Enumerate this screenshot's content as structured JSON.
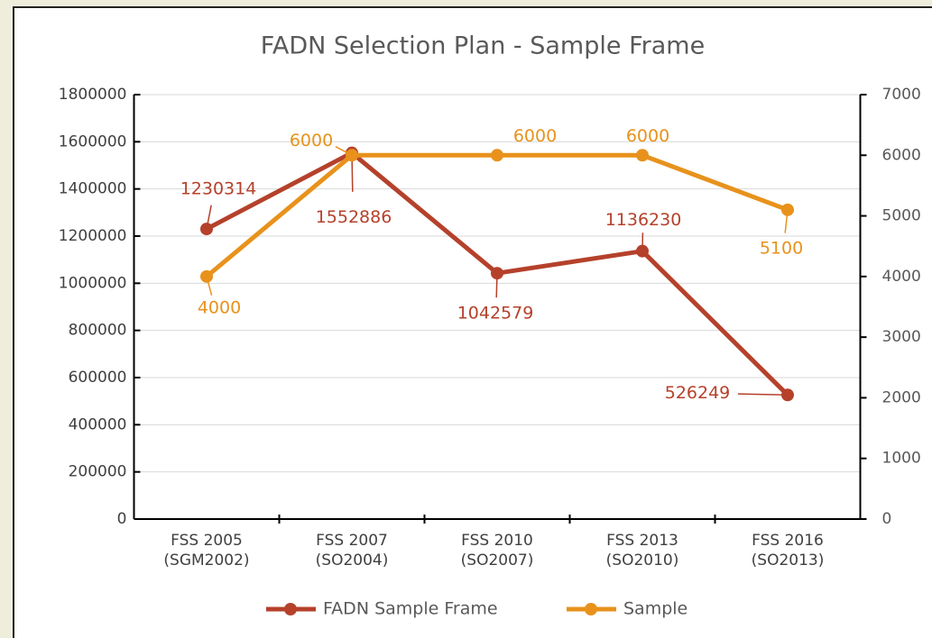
{
  "chart_data": {
    "type": "line",
    "title": "FADN Selection Plan - Sample Frame",
    "categories": [
      [
        "FSS 2005",
        "(SGM2002)"
      ],
      [
        "FSS 2007",
        "(SO2004)"
      ],
      [
        "FSS 2010",
        "(SO2007)"
      ],
      [
        "FSS 2013",
        "(SO2010)"
      ],
      [
        "FSS 2016",
        "(SO2013)"
      ]
    ],
    "series": [
      {
        "name": "FADN Sample Frame",
        "color": "#b5412b",
        "values": [
          1230314,
          1552886,
          1042579,
          1136230,
          526249
        ]
      },
      {
        "name": "Sample",
        "color": "#e8921c",
        "axis": "y2",
        "values": [
          4000,
          6000,
          6000,
          6000,
          5100
        ]
      }
    ],
    "ylim": [
      0,
      1800000
    ],
    "yticks": [
      0,
      200000,
      400000,
      600000,
      800000,
      1000000,
      1200000,
      1400000,
      1600000,
      1800000
    ],
    "y2lim": [
      0,
      7000
    ],
    "y2ticks": [
      0,
      1000,
      2000,
      3000,
      4000,
      5000,
      6000,
      7000
    ],
    "grid": true,
    "legend": "bottom"
  }
}
